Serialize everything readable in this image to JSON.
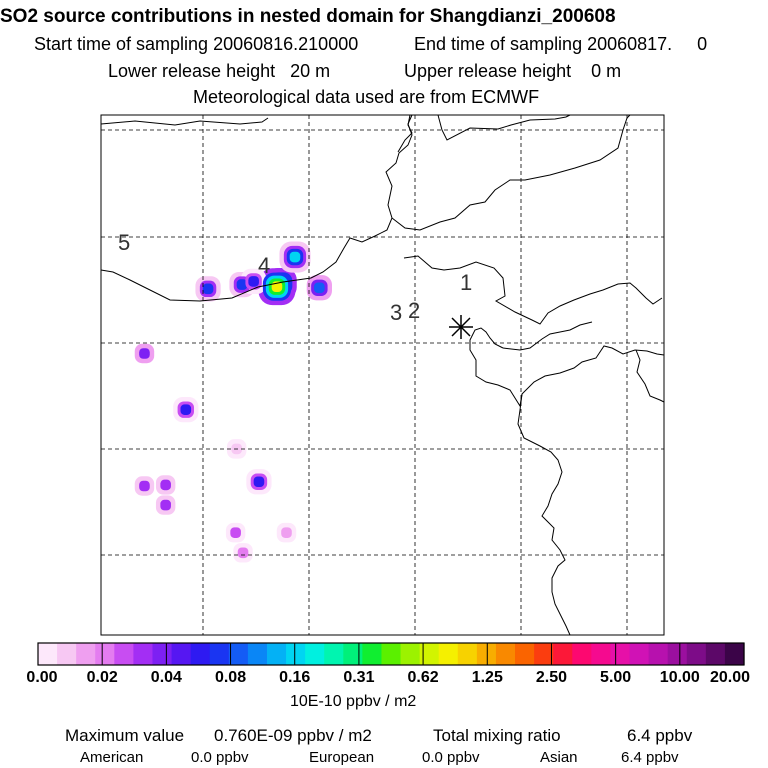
{
  "header": {
    "title": "SO2 source contributions in nested domain for Shangdianzi_200608",
    "start_label": "Start time of sampling 20060816.210000",
    "end_label": "End time of sampling 20060817.     0",
    "lower_label": "Lower release height   20 m",
    "upper_label": "Upper release height    0 m",
    "met_label": "Meteorological data used are from ECMWF"
  },
  "chart_data": {
    "type": "heatmap",
    "title": "SO2 source contributions in nested domain for Shangdianzi_200608",
    "station": {
      "name": "Shangdianzi",
      "marker": "asterisk"
    },
    "grid": true,
    "region_labels": [
      "1",
      "2",
      "3",
      "4",
      "5"
    ],
    "colorbar": {
      "ticks": [
        "0.00",
        "0.02",
        "0.04",
        "0.08",
        "0.16",
        "0.31",
        "0.62",
        "1.25",
        "2.50",
        "5.00",
        "10.00",
        "20.00"
      ],
      "unit": "10E-10 ppbv / m2",
      "colors": [
        "#fde8fb",
        "#f7c8f3",
        "#ef9ff0",
        "#e47cf0",
        "#c84df2",
        "#a32ef4",
        "#7d20f3",
        "#5617f2",
        "#2e1af2",
        "#1a35f2",
        "#145cf5",
        "#0a86f6",
        "#04b1f5",
        "#00d5f2",
        "#00f0e0",
        "#00f5b0",
        "#00f07a",
        "#10ee30",
        "#5bf000",
        "#9cf200",
        "#d2f400",
        "#f5f000",
        "#f7d200",
        "#f8ad00",
        "#f98900",
        "#fa6400",
        "#fb3d0f",
        "#fc1838",
        "#fd0870",
        "#f50a8f",
        "#e610a8",
        "#d012b5",
        "#b711ae",
        "#9b0f9f",
        "#7d0c88",
        "#5c0868",
        "#3b0448"
      ]
    },
    "hotspots": [
      {
        "lon_cell": 17.0,
        "lat_cell": 15.9,
        "level": 17
      },
      {
        "lon_cell": 16.6,
        "lat_cell": 16.2,
        "level": 21
      },
      {
        "lon_cell": 18.3,
        "lat_cell": 13.4,
        "level": 13
      },
      {
        "lon_cell": 13.3,
        "lat_cell": 16.0,
        "level": 9
      },
      {
        "lon_cell": 14.4,
        "lat_cell": 15.7,
        "level": 8
      },
      {
        "lon_cell": 10.1,
        "lat_cell": 16.4,
        "level": 9
      },
      {
        "lon_cell": 20.6,
        "lat_cell": 16.3,
        "level": 10
      },
      {
        "lon_cell": 4.1,
        "lat_cell": 22.5,
        "level": 6
      },
      {
        "lon_cell": 8.0,
        "lat_cell": 27.8,
        "level": 8
      },
      {
        "lon_cell": 4.1,
        "lat_cell": 35.0,
        "level": 5
      },
      {
        "lon_cell": 6.1,
        "lat_cell": 34.9,
        "level": 5
      },
      {
        "lon_cell": 6.1,
        "lat_cell": 36.8,
        "level": 5
      },
      {
        "lon_cell": 14.9,
        "lat_cell": 34.6,
        "level": 8
      },
      {
        "lon_cell": 12.7,
        "lat_cell": 39.4,
        "level": 4
      },
      {
        "lon_cell": 13.4,
        "lat_cell": 41.3,
        "level": 3
      },
      {
        "lon_cell": 17.5,
        "lat_cell": 39.4,
        "level": 2
      },
      {
        "lon_cell": 12.8,
        "lat_cell": 31.5,
        "level": 1
      }
    ]
  },
  "footer": {
    "max_label": "Maximum value",
    "max_value": "0.760E-09 ppbv / m2",
    "total_label": "Total mixing ratio",
    "total_value": "6.4 ppbv",
    "regions": [
      {
        "name": "American",
        "value": "0.0 ppbv"
      },
      {
        "name": "European",
        "value": "0.0 ppbv"
      },
      {
        "name": "Asian",
        "value": "6.4 ppbv"
      }
    ]
  }
}
